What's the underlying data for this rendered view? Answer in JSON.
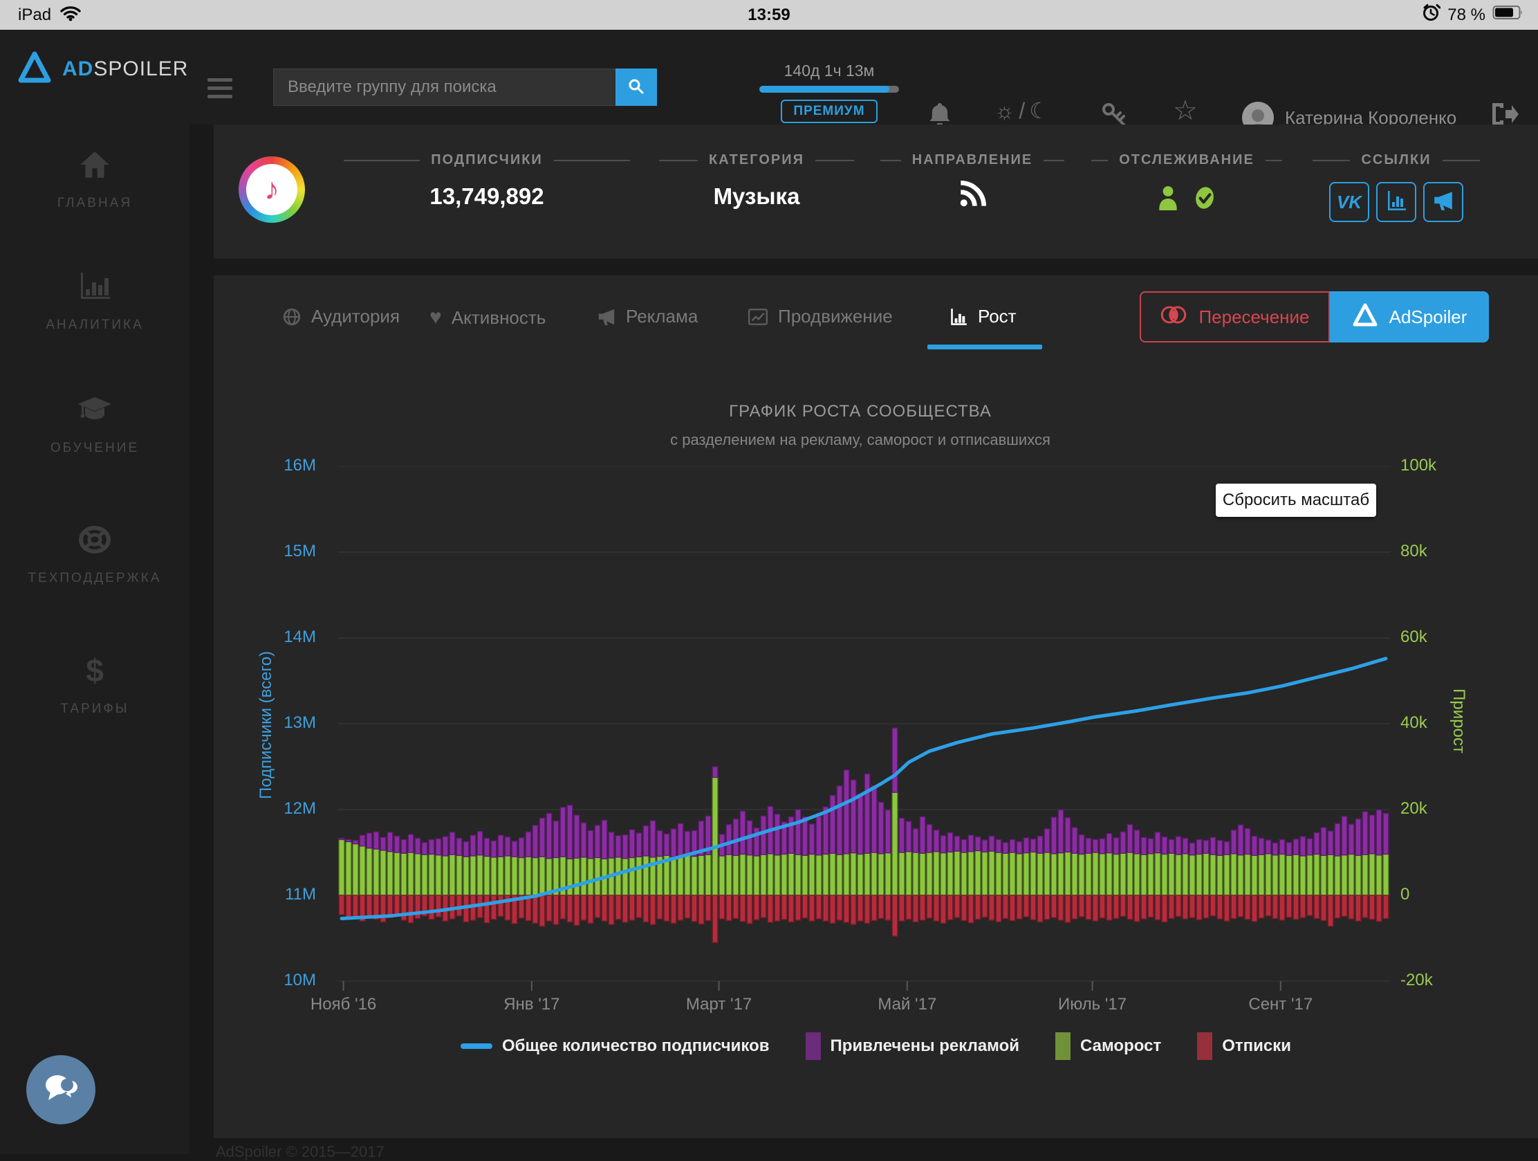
{
  "status_bar": {
    "device": "iPad",
    "time": "13:59",
    "battery": "78 %"
  },
  "navbar": {
    "logo_ad": "AD",
    "logo_spoiler": "SPOILER",
    "search_placeholder": "Введите группу для поиска",
    "timer": "140д 1ч 13м",
    "premium_label": "ПРЕМИУМ",
    "theme_divider": "/",
    "user_name": "Катерина Короленко"
  },
  "sidebar": {
    "items": [
      {
        "label": "ГЛАВНАЯ"
      },
      {
        "label": "АНАЛИТИКА"
      },
      {
        "label": "ОБУЧЕНИЕ"
      },
      {
        "label": "ТЕХПОДДЕРЖКА"
      },
      {
        "label": "ТАРИФЫ"
      }
    ]
  },
  "community": {
    "stats": [
      {
        "label": "ПОДПИСЧИКИ",
        "value": "13,749,892"
      },
      {
        "label": "КАТЕГОРИЯ",
        "value": "Музыка"
      },
      {
        "label": "НАПРАВЛЕНИЕ"
      },
      {
        "label": "ОТСЛЕЖИВАНИЕ"
      },
      {
        "label": "ССЫЛКИ"
      }
    ],
    "vk_label": "VK"
  },
  "tabs": [
    {
      "label": "Аудитория"
    },
    {
      "label": "Активность"
    },
    {
      "label": "Реклама"
    },
    {
      "label": "Продвижение"
    },
    {
      "label": "Рост",
      "active": true
    }
  ],
  "buttons": {
    "intersection": "Пересечение",
    "adspoiler": "AdSpoiler"
  },
  "chart_reset": "Сбросить масштаб",
  "footer": "AdSpoiler © 2015—2017",
  "chart_data": {
    "type": "stacked-bar+line",
    "title": "ГРАФИК РОСТА СООБЩЕСТВА",
    "subtitle": "с разделением на рекламу, саморост и отписавшихся",
    "left_axis": {
      "label": "Подписчики (всего)",
      "ticks": [
        "16M",
        "15M",
        "14M",
        "13M",
        "12M",
        "11M",
        "10M"
      ],
      "min": 10000000,
      "max": 16000000
    },
    "right_axis": {
      "label": "Прирост",
      "ticks": [
        "100k",
        "80k",
        "60k",
        "40k",
        "20k",
        "0",
        "-20k"
      ],
      "min": -20000,
      "max": 100000
    },
    "x_ticks": [
      {
        "label": "Нояб '16",
        "pos": 0.5
      },
      {
        "label": "Янв '17",
        "pos": 18.4
      },
      {
        "label": "Март '17",
        "pos": 36.2
      },
      {
        "label": "Май '17",
        "pos": 54.1
      },
      {
        "label": "Июль '17",
        "pos": 71.7
      },
      {
        "label": "Сент '17",
        "pos": 89.6
      }
    ],
    "legend": [
      {
        "label": "Общее количество подписчиков",
        "color": "#2da0e8",
        "type": "line"
      },
      {
        "label": "Привлечены рекламой",
        "color": "#6c2c7c",
        "type": "box"
      },
      {
        "label": "Саморост",
        "color": "#6f9239",
        "type": "box"
      },
      {
        "label": "Отписки",
        "color": "#97303a",
        "type": "box"
      }
    ],
    "grid_color": "#3a3a3c",
    "series": {
      "total_line": {
        "name": "Общее количество подписчиков",
        "unit": "M subscribers",
        "color": "#2da0e8",
        "keypoints": [
          [
            0,
            10.73
          ],
          [
            7,
            10.76
          ],
          [
            14,
            10.82
          ],
          [
            21,
            10.9
          ],
          [
            28,
            10.99
          ],
          [
            35,
            11.14
          ],
          [
            42,
            11.3
          ],
          [
            49,
            11.45
          ],
          [
            54,
            11.56
          ],
          [
            58,
            11.66
          ],
          [
            62,
            11.76
          ],
          [
            66,
            11.85
          ],
          [
            70,
            11.97
          ],
          [
            74,
            12.12
          ],
          [
            78,
            12.3
          ],
          [
            80,
            12.4
          ],
          [
            82,
            12.55
          ],
          [
            85,
            12.68
          ],
          [
            89,
            12.78
          ],
          [
            94,
            12.88
          ],
          [
            100,
            12.95
          ],
          [
            105,
            13.02
          ],
          [
            109,
            13.08
          ],
          [
            115,
            13.15
          ],
          [
            120,
            13.22
          ],
          [
            126,
            13.3
          ],
          [
            131,
            13.36
          ],
          [
            136,
            13.44
          ],
          [
            141,
            13.54
          ],
          [
            146,
            13.64
          ],
          [
            151,
            13.76
          ]
        ]
      },
      "ads": {
        "name": "Привлечены рекламой",
        "unit": "k per period",
        "fill": "#8a2da0",
        "stroke": "#5e1c71",
        "values": [
          0.3,
          0.5,
          0.8,
          2.5,
          3.5,
          4,
          3,
          4.5,
          3.8,
          3.2,
          4.2,
          3.6,
          2.8,
          3.4,
          3.8,
          4.5,
          5.2,
          4,
          3.5,
          4.8,
          5.5,
          4.2,
          3.8,
          5,
          4.4,
          3.6,
          4.6,
          5.8,
          7.5,
          9,
          10.5,
          8.5,
          11.5,
          12.5,
          10,
          8,
          6.5,
          7.5,
          9,
          6,
          5,
          5.5,
          6.5,
          5.5,
          7,
          8.5,
          6,
          5,
          6.5,
          7.5,
          5.5,
          6,
          8,
          9,
          2.5,
          5,
          7,
          8.5,
          10,
          8,
          6.5,
          9,
          11,
          9.5,
          7.5,
          8.5,
          10.5,
          9,
          7,
          9,
          11,
          13.5,
          16,
          19.5,
          17,
          14,
          18.5,
          15.5,
          12,
          10,
          15,
          8,
          7,
          5.5,
          8.5,
          6.5,
          5,
          4,
          4.5,
          3.5,
          3,
          3.8,
          3.2,
          2.8,
          3.5,
          3,
          2.5,
          3,
          2.8,
          3.5,
          3,
          4,
          5.5,
          8.5,
          10,
          8,
          6,
          4.5,
          3.5,
          3,
          3.5,
          4.5,
          3.8,
          5,
          6.5,
          5.5,
          4,
          3.5,
          4.8,
          4,
          3.2,
          4.2,
          3.6,
          2.8,
          3.4,
          3,
          4,
          3.5,
          3,
          5.5,
          7,
          6,
          4.5,
          3.8,
          3.2,
          2.8,
          3.4,
          3,
          3.6,
          4.5,
          3.8,
          5,
          6.5,
          5.5,
          7.5,
          9,
          7,
          8.5,
          10,
          9,
          10.5,
          9.5
        ]
      },
      "self_growth": {
        "name": "Саморост",
        "unit": "k per period",
        "fill": "#8cc63e",
        "stroke": "#618e27",
        "values": [
          13,
          12.5,
          12,
          11.5,
          11,
          10.8,
          10.5,
          10.2,
          10,
          9.8,
          10,
          9.7,
          9.5,
          9.6,
          9.4,
          9.2,
          9.5,
          9.3,
          9,
          9.2,
          9.4,
          9.1,
          8.9,
          9,
          9.2,
          9,
          8.8,
          9,
          8.8,
          9,
          8.6,
          8.8,
          9,
          8.5,
          8.7,
          8.9,
          8.6,
          8.8,
          8.5,
          8.7,
          8.9,
          8.6,
          8.8,
          9,
          9.2,
          8.9,
          9.1,
          9.3,
          9,
          9.2,
          9.4,
          9.1,
          9.3,
          9.5,
          27.5,
          9.2,
          9.5,
          9.3,
          9.6,
          9.4,
          9.2,
          9.5,
          9.7,
          9.4,
          9.6,
          9.8,
          9.5,
          9.3,
          9.6,
          9.4,
          9.6,
          9.8,
          9.5,
          9.7,
          9.9,
          9.6,
          9.8,
          10,
          9.7,
          9.9,
          24,
          10,
          10.2,
          10,
          9.8,
          10,
          10.2,
          9.9,
          10.1,
          10.3,
          10,
          10.2,
          10.4,
          10.1,
          10.3,
          10,
          9.8,
          10,
          9.7,
          9.9,
          10.1,
          9.8,
          10,
          9.7,
          9.9,
          10.1,
          9.8,
          9.6,
          9.8,
          10,
          9.7,
          9.9,
          9.6,
          9.8,
          10,
          9.7,
          9.5,
          9.7,
          9.9,
          9.6,
          9.8,
          9.5,
          9.7,
          9.4,
          9.6,
          9.8,
          9.5,
          9.3,
          9.5,
          9.7,
          9.4,
          9.6,
          9.3,
          9.5,
          9.7,
          9.4,
          9.6,
          9.3,
          9.5,
          9.2,
          9.4,
          9.6,
          9.3,
          9.5,
          9.2,
          9.4,
          9.6,
          9.3,
          9.5,
          9.7,
          9.4,
          9.6
        ]
      },
      "unsubscribed": {
        "name": "Отписки",
        "unit": "k per period",
        "fill": "#b52c3c",
        "stroke": "#7c1c29",
        "values": [
          -4.5,
          -5.5,
          -5,
          -6,
          -4.8,
          -5.6,
          -6.2,
          -5.2,
          -4.6,
          -5.8,
          -6.4,
          -5.4,
          -4.8,
          -5.6,
          -5,
          -6,
          -5.5,
          -4.8,
          -6.2,
          -5.8,
          -5.2,
          -6.4,
          -5.6,
          -4.9,
          -5.8,
          -6.6,
          -5.3,
          -5.9,
          -6.5,
          -7.2,
          -6,
          -6.8,
          -5.5,
          -6.2,
          -7,
          -5.8,
          -6.5,
          -5.2,
          -6,
          -6.8,
          -5.6,
          -6.3,
          -5.8,
          -5.2,
          -6.2,
          -6.8,
          -5.5,
          -6,
          -6.5,
          -5.8,
          -5.3,
          -6.1,
          -6.7,
          -5.9,
          -11,
          -5.5,
          -5.9,
          -5.4,
          -6.1,
          -6.6,
          -5.7,
          -5.2,
          -6.3,
          -6,
          -5.6,
          -6.2,
          -5.8,
          -5.3,
          -6,
          -5.5,
          -6,
          -6.5,
          -5.8,
          -6.3,
          -6.8,
          -6,
          -6.5,
          -5.9,
          -5.4,
          -5.8,
          -9.5,
          -6,
          -5.6,
          -6.2,
          -5.8,
          -5.3,
          -6,
          -6.5,
          -5.7,
          -5.2,
          -5.9,
          -6.4,
          -5.6,
          -5.1,
          -5.8,
          -6.2,
          -5.4,
          -5.9,
          -5.5,
          -5,
          -5.7,
          -6.2,
          -5.6,
          -5.2,
          -5.8,
          -6.3,
          -5.5,
          -5,
          -5.6,
          -6,
          -5.3,
          -5.8,
          -5.4,
          -4.9,
          -5.6,
          -6.1,
          -5.5,
          -5.1,
          -5.7,
          -6.2,
          -5.4,
          -4.9,
          -5.5,
          -5.2,
          -5.7,
          -5.3,
          -4.8,
          -5.5,
          -6,
          -5.4,
          -5,
          -5.6,
          -6.1,
          -5.3,
          -4.8,
          -5.4,
          -5.8,
          -5.1,
          -5.6,
          -5.2,
          -4.7,
          -5.4,
          -5.9,
          -7.2,
          -5.3,
          -4.9,
          -5.5,
          -6,
          -5.2,
          -5.6,
          -6.1,
          -5.4
        ]
      }
    }
  }
}
